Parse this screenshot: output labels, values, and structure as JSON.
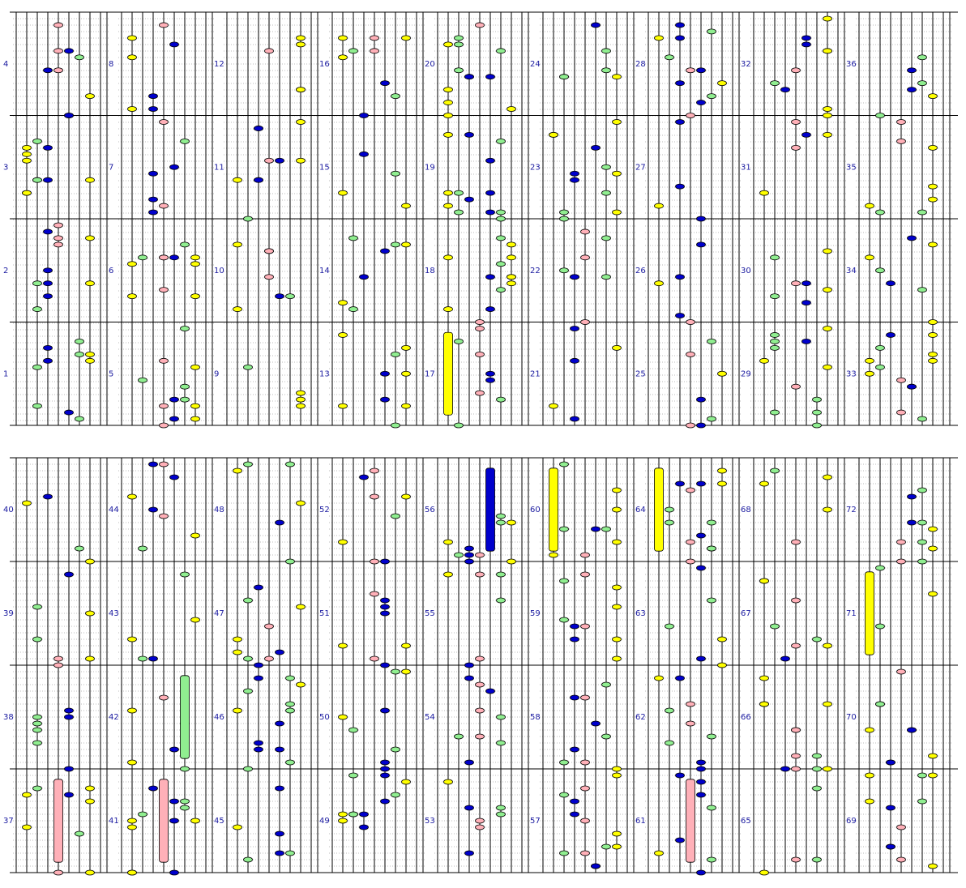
{
  "measures": [
    1,
    2,
    3,
    4,
    5,
    6,
    7,
    8,
    9,
    10,
    11,
    12,
    13,
    14,
    15,
    16,
    17,
    18,
    19,
    20,
    21,
    22,
    23,
    24,
    25,
    26,
    27,
    28,
    29,
    30,
    31,
    32,
    33,
    34,
    35,
    36,
    37,
    38,
    39,
    40,
    41,
    42,
    43,
    44,
    45,
    46,
    47,
    48,
    49,
    50,
    51,
    52,
    53,
    54,
    55,
    56,
    57,
    58,
    59,
    60,
    61,
    62,
    63,
    64,
    65,
    66,
    67,
    68,
    69,
    70,
    71,
    72
  ]
}
